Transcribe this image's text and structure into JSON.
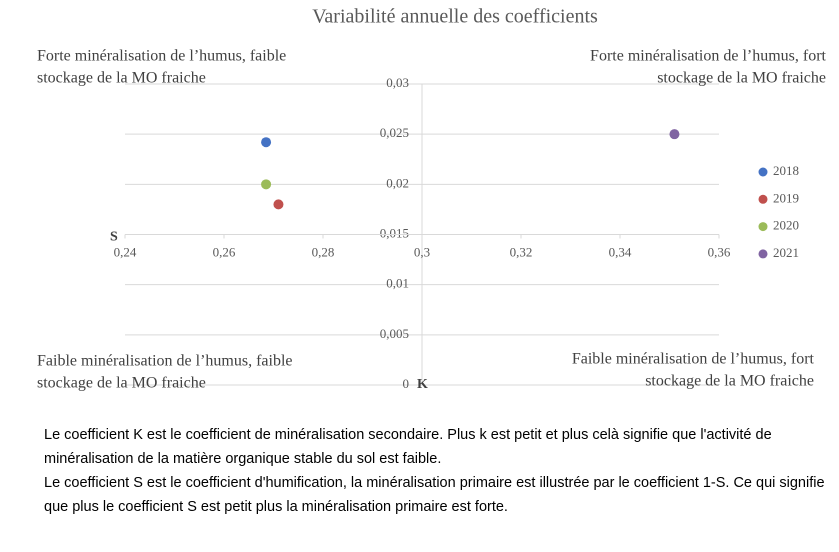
{
  "chart_data": {
    "type": "scatter",
    "title": "Variabilité annuelle des coefficients",
    "xlabel": "S",
    "ylabel": "K",
    "xlim": [
      0.24,
      0.36
    ],
    "xticks": [
      {
        "value": 0.24,
        "label": "0,24"
      },
      {
        "value": 0.26,
        "label": "0,26"
      },
      {
        "value": 0.28,
        "label": "0,28"
      },
      {
        "value": 0.3,
        "label": "0,3"
      },
      {
        "value": 0.32,
        "label": "0,32"
      },
      {
        "value": 0.34,
        "label": "0,34"
      },
      {
        "value": 0.36,
        "label": "0,36"
      }
    ],
    "ylim": [
      0,
      0.03
    ],
    "yticks": [
      0,
      {
        "value": 0.005,
        "label": "0,005"
      },
      {
        "value": 0.01,
        "label": "0,01"
      },
      {
        "value": 0.015,
        "label": "0,015"
      },
      {
        "value": 0.02,
        "label": "0,02"
      },
      {
        "value": 0.025,
        "label": "0,025"
      },
      {
        "value": 0.03,
        "label": "0,03"
      }
    ],
    "x_axis_crosses": 0.015,
    "y_axis_crosses": 0.3,
    "grid": true,
    "legend": "right",
    "series": [
      {
        "name": "2018",
        "color": "#4472c4",
        "x": [
          0.2685
        ],
        "values": [
          0.0242
        ]
      },
      {
        "name": "2019",
        "color": "#c0504d",
        "x": [
          0.271
        ],
        "values": [
          0.018
        ]
      },
      {
        "name": "2020",
        "color": "#9bbb59",
        "x": [
          0.2685
        ],
        "values": [
          0.02
        ]
      },
      {
        "name": "2021",
        "color": "#8064a2",
        "x": [
          0.351
        ],
        "values": [
          0.025
        ]
      }
    ],
    "annotations": [
      {
        "lines": [
          "Forte minéralisation de l’humus, faible",
          "stockage de la MO fraiche"
        ]
      },
      {
        "lines": [
          "Forte minéralisation de l’humus, fort",
          "stockage de la MO fraiche"
        ]
      },
      {
        "lines": [
          "Faible minéralisation de l’humus, faible",
          "stockage de la MO fraiche"
        ]
      },
      {
        "lines": [
          "Faible minéralisation de l’humus, fort",
          "stockage de la MO fraiche"
        ]
      }
    ]
  },
  "description": [
    "Le coefficient K est le coefficient de minéralisation secondaire. Plus k est petit et plus celà signifie que l'activité de minéralisation de la matière organique stable du sol est faible.",
    "Le coefficient S est le coefficient d'humification, la minéralisation primaire est illustrée par le coefficient 1-S. Ce qui signifie que plus le coefficient S est petit plus la minéralisation primaire est forte."
  ]
}
